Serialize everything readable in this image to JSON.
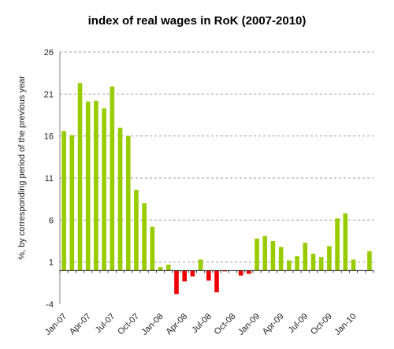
{
  "chart_data": {
    "type": "bar",
    "title": "index of real wages in RoK (2007-2010)",
    "ylabel": "%, by corresponding period of the previous year",
    "xlabel": "",
    "ylim": [
      -4,
      26
    ],
    "yticks": [
      -4,
      1,
      6,
      11,
      16,
      21,
      26
    ],
    "grid": "horizontal dashed",
    "legend": "none",
    "colors": {
      "positive": "#99cc00",
      "negative": "#ee0000",
      "grid": "#999999",
      "axis": "#888888"
    },
    "categories": [
      "Jan-07",
      "Feb-07",
      "Mar-07",
      "Apr-07",
      "May-07",
      "Jun-07",
      "Jul-07",
      "Aug-07",
      "Sep-07",
      "Oct-07",
      "Nov-07",
      "Dec-07",
      "Jan-08",
      "Feb-08",
      "Mar-08",
      "Apr-08",
      "May-08",
      "Jun-08",
      "Jul-08",
      "Aug-08",
      "Sep-08",
      "Oct-08",
      "Nov-08",
      "Dec-08",
      "Jan-09",
      "Feb-09",
      "Mar-09",
      "Apr-09",
      "May-09",
      "Jun-09",
      "Jul-09",
      "Aug-09",
      "Sep-09",
      "Oct-09",
      "Nov-09",
      "Dec-09",
      "Jan-10",
      "Feb-10",
      "Mar-10"
    ],
    "xtick_labels": [
      "Jan-07",
      "Apr-07",
      "Jul-07",
      "Oct-07",
      "Jan-08",
      "Apr-08",
      "Jul-08",
      "Oct-08",
      "Jan-09",
      "Apr-09",
      "Jul-09",
      "Oct-09",
      "Jan-10"
    ],
    "xtick_indices": [
      0,
      3,
      6,
      9,
      12,
      15,
      18,
      21,
      24,
      27,
      30,
      33,
      36
    ],
    "values": [
      16.6,
      16.1,
      22.3,
      20.1,
      20.2,
      19.3,
      21.9,
      17.0,
      16.0,
      9.6,
      8.0,
      5.2,
      0.4,
      0.7,
      -2.8,
      -1.3,
      -0.7,
      1.3,
      -1.2,
      -2.6,
      -0.1,
      0.0,
      -0.6,
      -0.4,
      3.8,
      4.1,
      3.5,
      2.8,
      1.2,
      1.7,
      3.3,
      2.0,
      1.6,
      2.9,
      6.2,
      6.8,
      1.3,
      0.0,
      2.3
    ]
  }
}
